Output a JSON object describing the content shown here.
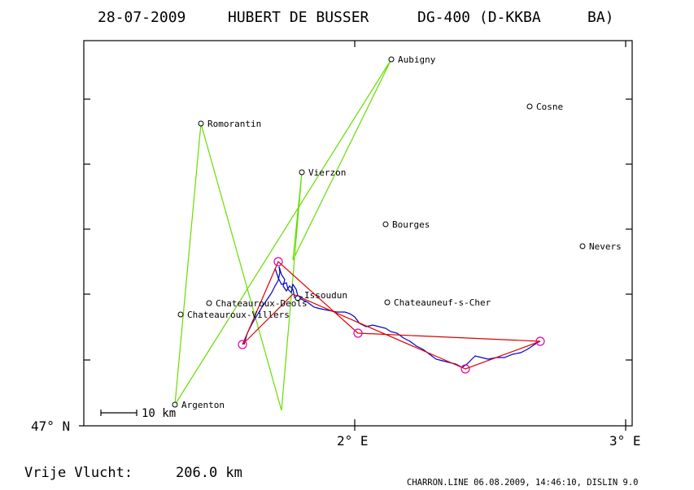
{
  "header": {
    "date": "28-07-2009",
    "pilot": "HUBERT DE BUSSER",
    "glider": "DG-400 (D-KKBA",
    "class": "BA)"
  },
  "axes": {
    "y_tick_label": "47° N",
    "x_tick_labels": [
      "2° E",
      "3° E"
    ]
  },
  "scale_bar": {
    "label": "10 km"
  },
  "footer": {
    "distance_label": "Vrije Vlucht:",
    "distance_value": "206.0 km",
    "program_info": "CHARRON.LINE 06.08.2009, 14:46:10, DISLIN 9.0"
  },
  "colors": {
    "frame": "#000000",
    "task_line": "#66dd00",
    "track": "#0000cc",
    "triangle": "#dd0000",
    "turnpoint_marker": "#dd00aa"
  },
  "towns": [
    {
      "name": "Aubigny"
    },
    {
      "name": "Cosne"
    },
    {
      "name": "Romorantin"
    },
    {
      "name": "Vierzon"
    },
    {
      "name": "Bourges"
    },
    {
      "name": "Nevers"
    },
    {
      "name": "Issoudun"
    },
    {
      "name": "Chateauroux-Deols"
    },
    {
      "name": "Chateauneuf-s-Cher"
    },
    {
      "name": "Chateauroux-Villers"
    },
    {
      "name": "Argenton"
    }
  ]
}
